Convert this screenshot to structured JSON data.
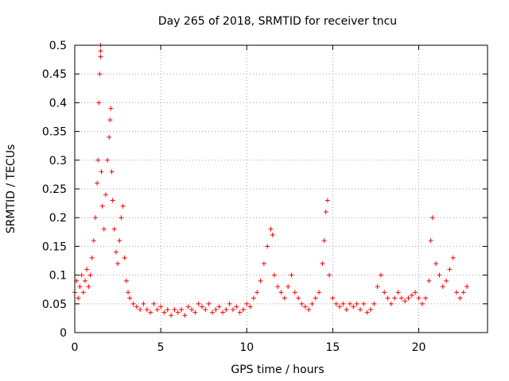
{
  "chart_data": {
    "type": "scatter",
    "title": "Day 265 of 2018, SRMTID for receiver tncu",
    "xlabel": "GPS time / hours",
    "ylabel": "SRMTID / TECUs",
    "xlim": [
      0,
      24
    ],
    "ylim": [
      0,
      0.5
    ],
    "xticks": [
      0,
      5,
      10,
      15,
      20
    ],
    "xtick_labels": [
      "0",
      "5",
      "10",
      "15",
      "20"
    ],
    "yticks": [
      0,
      0.05,
      0.1,
      0.15,
      0.2,
      0.25,
      0.3,
      0.35,
      0.4,
      0.45,
      0.5
    ],
    "ytick_labels": [
      "0",
      "0.05",
      "0.1",
      "0.15",
      "0.2",
      "0.25",
      "0.3",
      "0.35",
      "0.4",
      "0.45",
      "0.5"
    ],
    "grid": true,
    "marker": "+",
    "color": "#ff0000",
    "series": [
      {
        "name": "SRMTID",
        "x": [
          0.0,
          0.1,
          0.2,
          0.3,
          0.4,
          0.5,
          0.6,
          0.7,
          0.8,
          0.9,
          1.0,
          1.1,
          1.2,
          1.3,
          1.35,
          1.4,
          1.45,
          1.5,
          1.5,
          1.5,
          1.55,
          1.6,
          1.7,
          1.8,
          1.9,
          2.0,
          2.05,
          2.1,
          2.15,
          2.2,
          2.3,
          2.4,
          2.5,
          2.6,
          2.7,
          2.8,
          2.9,
          3.0,
          3.1,
          3.2,
          3.4,
          3.6,
          3.8,
          4.0,
          4.2,
          4.4,
          4.6,
          4.8,
          5.0,
          5.2,
          5.4,
          5.6,
          5.8,
          6.0,
          6.2,
          6.4,
          6.6,
          6.8,
          7.0,
          7.2,
          7.4,
          7.6,
          7.8,
          8.0,
          8.2,
          8.4,
          8.6,
          8.8,
          9.0,
          9.2,
          9.4,
          9.6,
          9.8,
          10.0,
          10.2,
          10.4,
          10.6,
          10.8,
          11.0,
          11.2,
          11.4,
          11.5,
          11.6,
          11.8,
          12.0,
          12.2,
          12.4,
          12.6,
          12.8,
          13.0,
          13.2,
          13.4,
          13.6,
          13.8,
          14.0,
          14.2,
          14.4,
          14.5,
          14.6,
          14.7,
          14.8,
          15.0,
          15.2,
          15.4,
          15.6,
          15.8,
          16.0,
          16.2,
          16.4,
          16.6,
          16.8,
          17.0,
          17.2,
          17.4,
          17.6,
          17.8,
          18.0,
          18.2,
          18.4,
          18.6,
          18.8,
          19.0,
          19.2,
          19.4,
          19.6,
          19.8,
          20.0,
          20.2,
          20.4,
          20.6,
          20.7,
          20.8,
          21.0,
          21.2,
          21.4,
          21.6,
          21.8,
          22.0,
          22.2,
          22.4,
          22.6,
          22.8
        ],
        "y": [
          0.07,
          0.09,
          0.06,
          0.08,
          0.1,
          0.07,
          0.09,
          0.11,
          0.08,
          0.1,
          0.13,
          0.16,
          0.2,
          0.26,
          0.3,
          0.4,
          0.45,
          0.48,
          0.49,
          0.5,
          0.28,
          0.22,
          0.18,
          0.24,
          0.3,
          0.34,
          0.37,
          0.39,
          0.28,
          0.23,
          0.18,
          0.14,
          0.12,
          0.16,
          0.2,
          0.22,
          0.13,
          0.09,
          0.07,
          0.06,
          0.05,
          0.045,
          0.04,
          0.05,
          0.04,
          0.035,
          0.05,
          0.04,
          0.045,
          0.035,
          0.04,
          0.03,
          0.04,
          0.035,
          0.04,
          0.03,
          0.045,
          0.04,
          0.035,
          0.05,
          0.045,
          0.04,
          0.05,
          0.035,
          0.04,
          0.045,
          0.035,
          0.04,
          0.05,
          0.04,
          0.045,
          0.035,
          0.04,
          0.05,
          0.045,
          0.06,
          0.07,
          0.09,
          0.12,
          0.15,
          0.18,
          0.17,
          0.1,
          0.08,
          0.07,
          0.06,
          0.08,
          0.1,
          0.07,
          0.06,
          0.05,
          0.045,
          0.04,
          0.05,
          0.06,
          0.07,
          0.12,
          0.16,
          0.21,
          0.23,
          0.1,
          0.06,
          0.05,
          0.045,
          0.05,
          0.04,
          0.05,
          0.045,
          0.05,
          0.04,
          0.05,
          0.035,
          0.04,
          0.05,
          0.08,
          0.1,
          0.07,
          0.06,
          0.05,
          0.06,
          0.07,
          0.06,
          0.055,
          0.06,
          0.065,
          0.07,
          0.06,
          0.05,
          0.06,
          0.09,
          0.16,
          0.2,
          0.12,
          0.1,
          0.08,
          0.09,
          0.11,
          0.13,
          0.07,
          0.06,
          0.07,
          0.08
        ]
      }
    ]
  }
}
